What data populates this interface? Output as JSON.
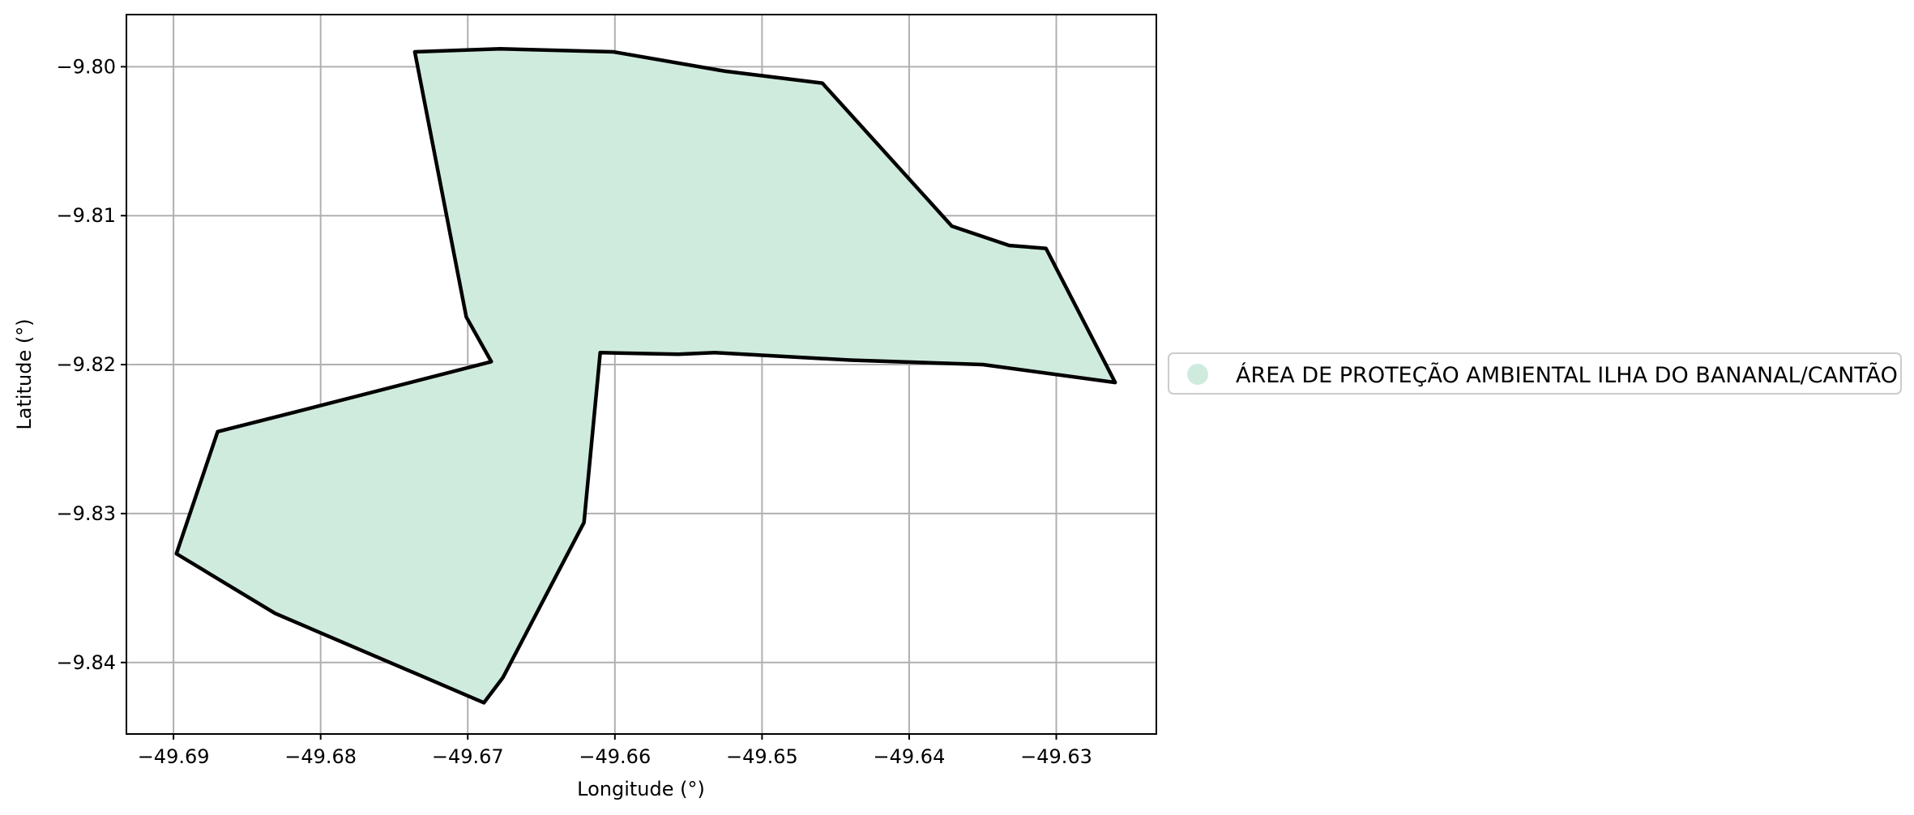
{
  "chart_data": {
    "type": "map",
    "xlabel": "Longitude (°)",
    "ylabel": "Latitude (°)",
    "xlim": [
      -49.6932,
      -49.6232
    ],
    "ylim": [
      -9.8448,
      -9.7965
    ],
    "grid": true,
    "x_ticks": [
      -49.69,
      -49.68,
      -49.67,
      -49.66,
      -49.65,
      -49.64,
      -49.63
    ],
    "y_ticks": [
      -9.8,
      -9.81,
      -9.82,
      -9.83,
      -9.84
    ],
    "x_tick_labels": [
      "−49.69",
      "−49.68",
      "−49.67",
      "−49.66",
      "−49.65",
      "−49.64",
      "−49.63"
    ],
    "y_tick_labels": [
      "−9.80",
      "−9.81",
      "−9.82",
      "−9.83",
      "−9.84"
    ],
    "legend_position": "right",
    "fill_color": "#cfebde",
    "edge_color": "#000000",
    "series": [
      {
        "name": "ÁREA DE PROTEÇÃO AMBIENTAL ILHA DO BANANAL/CANTÃO",
        "polygon": [
          [
            -49.6736,
            -9.799
          ],
          [
            -49.6678,
            -9.7988
          ],
          [
            -49.6601,
            -9.799
          ],
          [
            -49.6525,
            -9.8003
          ],
          [
            -49.6459,
            -9.8011
          ],
          [
            -49.6371,
            -9.8107
          ],
          [
            -49.6332,
            -9.812
          ],
          [
            -49.6307,
            -9.8122
          ],
          [
            -49.626,
            -9.8212
          ],
          [
            -49.635,
            -9.82
          ],
          [
            -49.644,
            -9.8197
          ],
          [
            -49.6532,
            -9.8192
          ],
          [
            -49.6557,
            -9.8193
          ],
          [
            -49.661,
            -9.8192
          ],
          [
            -49.6621,
            -9.8306
          ],
          [
            -49.6676,
            -9.841
          ],
          [
            -49.6689,
            -9.8427
          ],
          [
            -49.6831,
            -9.8367
          ],
          [
            -49.6898,
            -9.8327
          ],
          [
            -49.687,
            -9.8245
          ],
          [
            -49.6818,
            -9.8232
          ],
          [
            -49.6684,
            -9.8198
          ],
          [
            -49.6701,
            -9.8168
          ],
          [
            -49.6736,
            -9.799
          ]
        ]
      }
    ]
  }
}
